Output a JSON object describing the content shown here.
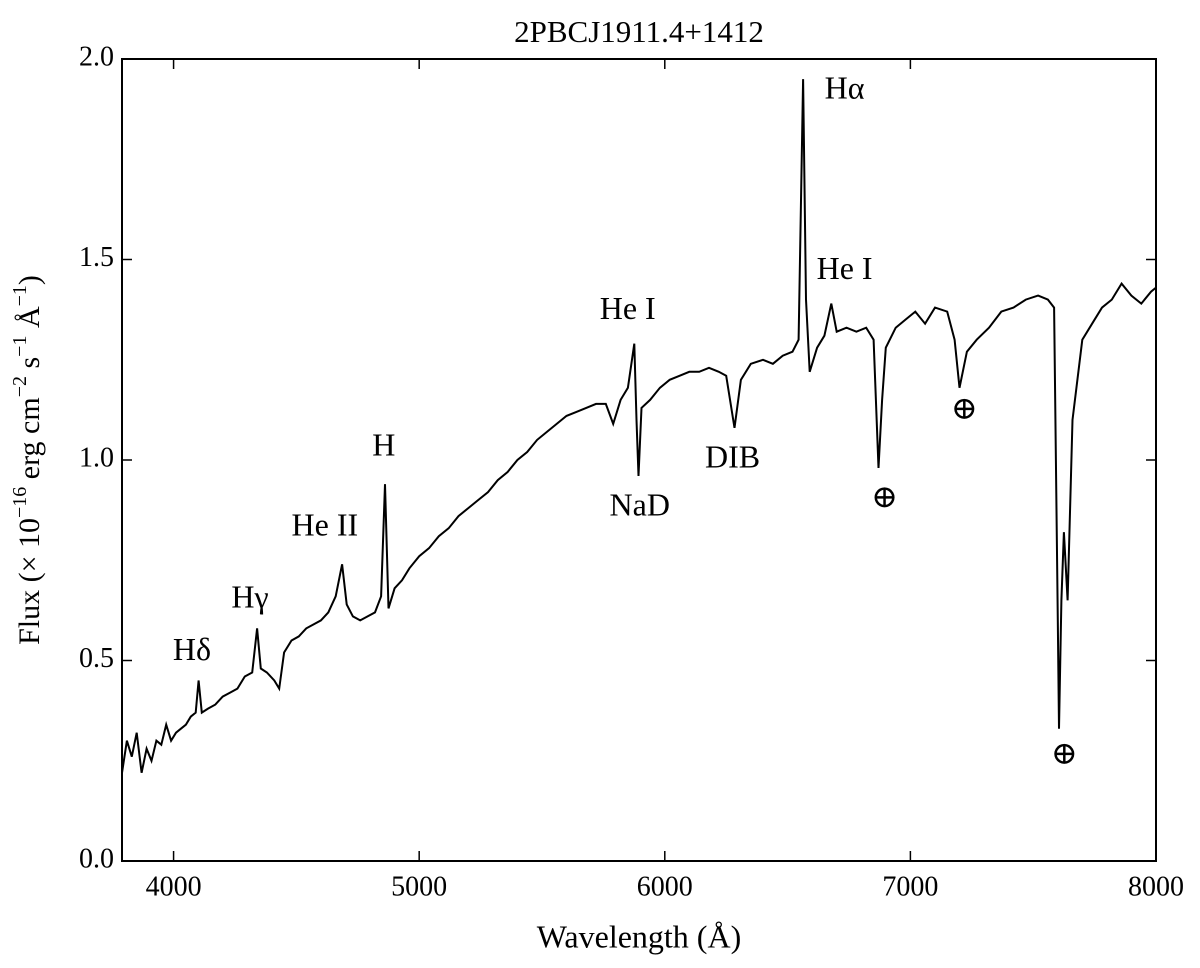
{
  "chart_data": {
    "type": "line",
    "title": "2PBCJ1911.4+1412",
    "xlabel": "Wavelength (Å)",
    "ylabel": [
      "Flux (× 10",
      "−16",
      " erg cm",
      "−2",
      " s",
      "−1",
      " Å",
      "−1",
      ")"
    ],
    "color": "#000000",
    "xlim": [
      3790,
      8000
    ],
    "xticks": [
      4000,
      5000,
      6000,
      7000,
      8000
    ],
    "ylim": [
      0,
      2
    ],
    "yticks": [
      {
        "value": 0,
        "label": "0.0"
      },
      0.5,
      {
        "value": 1,
        "label": "1.0"
      },
      1.5,
      {
        "value": 2,
        "label": "2.0"
      }
    ],
    "x": [
      3790,
      3810,
      3830,
      3850,
      3870,
      3890,
      3910,
      3930,
      3950,
      3970,
      3990,
      4010,
      4030,
      4050,
      4070,
      4090,
      4102,
      4115,
      4140,
      4170,
      4200,
      4230,
      4260,
      4290,
      4320,
      4340,
      4355,
      4380,
      4410,
      4430,
      4450,
      4480,
      4510,
      4540,
      4570,
      4600,
      4630,
      4660,
      4686,
      4705,
      4730,
      4760,
      4790,
      4820,
      4845,
      4861,
      4875,
      4900,
      4930,
      4960,
      5000,
      5040,
      5080,
      5120,
      5160,
      5200,
      5240,
      5280,
      5320,
      5360,
      5400,
      5440,
      5480,
      5520,
      5560,
      5600,
      5640,
      5680,
      5720,
      5760,
      5790,
      5820,
      5850,
      5876,
      5885,
      5893,
      5905,
      5940,
      5980,
      6020,
      6060,
      6100,
      6140,
      6180,
      6220,
      6250,
      6284,
      6310,
      6350,
      6400,
      6440,
      6480,
      6520,
      6545,
      6563,
      6575,
      6590,
      6620,
      6650,
      6678,
      6700,
      6740,
      6780,
      6820,
      6850,
      6870,
      6885,
      6900,
      6940,
      6980,
      7020,
      7060,
      7100,
      7150,
      7180,
      7200,
      7230,
      7270,
      7320,
      7370,
      7420,
      7470,
      7520,
      7560,
      7585,
      7600,
      7605,
      7615,
      7625,
      7640,
      7660,
      7700,
      7740,
      7780,
      7820,
      7860,
      7900,
      7940,
      7980,
      8000
    ],
    "values": [
      0.22,
      0.3,
      0.26,
      0.32,
      0.22,
      0.28,
      0.25,
      0.3,
      0.29,
      0.34,
      0.3,
      0.32,
      0.33,
      0.34,
      0.36,
      0.37,
      0.45,
      0.37,
      0.38,
      0.39,
      0.41,
      0.42,
      0.43,
      0.46,
      0.47,
      0.58,
      0.48,
      0.47,
      0.45,
      0.43,
      0.52,
      0.55,
      0.56,
      0.58,
      0.59,
      0.6,
      0.62,
      0.66,
      0.74,
      0.64,
      0.61,
      0.6,
      0.61,
      0.62,
      0.66,
      0.94,
      0.63,
      0.68,
      0.7,
      0.73,
      0.76,
      0.78,
      0.81,
      0.83,
      0.86,
      0.88,
      0.9,
      0.92,
      0.95,
      0.97,
      1.0,
      1.02,
      1.05,
      1.07,
      1.09,
      1.11,
      1.12,
      1.13,
      1.14,
      1.14,
      1.09,
      1.15,
      1.18,
      1.29,
      1.1,
      0.96,
      1.13,
      1.15,
      1.18,
      1.2,
      1.21,
      1.22,
      1.22,
      1.23,
      1.22,
      1.21,
      1.08,
      1.2,
      1.24,
      1.25,
      1.24,
      1.26,
      1.27,
      1.3,
      1.95,
      1.4,
      1.22,
      1.28,
      1.31,
      1.39,
      1.32,
      1.33,
      1.32,
      1.33,
      1.3,
      0.98,
      1.15,
      1.28,
      1.33,
      1.35,
      1.37,
      1.34,
      1.38,
      1.37,
      1.3,
      1.18,
      1.27,
      1.3,
      1.33,
      1.37,
      1.38,
      1.4,
      1.41,
      1.4,
      1.38,
      0.6,
      0.33,
      0.65,
      0.82,
      0.65,
      1.1,
      1.3,
      1.34,
      1.38,
      1.4,
      1.44,
      1.41,
      1.39,
      1.42,
      1.43
    ],
    "annotations": [
      "Hδ",
      "Hγ",
      "He II",
      "H",
      "He I",
      "NaD",
      "DIB",
      "Hα",
      "He I",
      "⊕",
      "⊕",
      "⊕"
    ]
  }
}
